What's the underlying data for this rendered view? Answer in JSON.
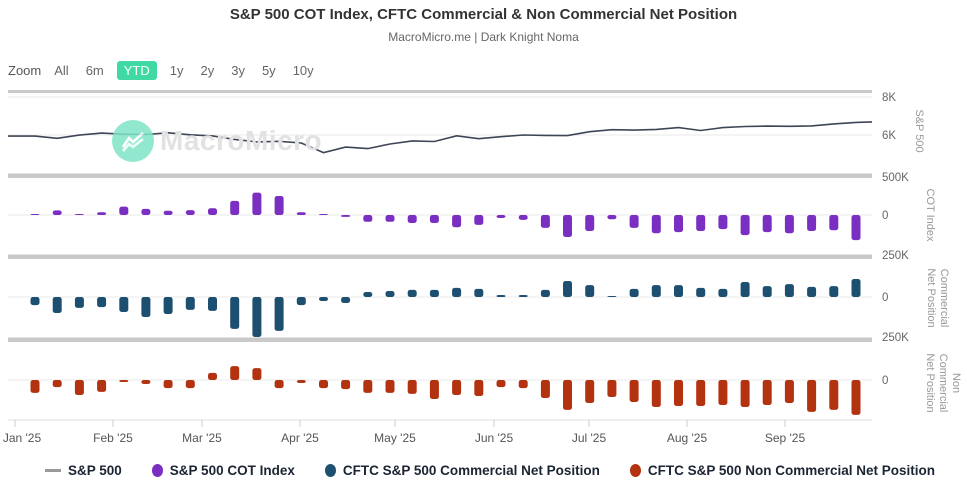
{
  "header": {
    "title": "S&P 500 COT Index, CFTC Commercial & Non Commercial Net Position",
    "subtitle": "MacroMicro.me | Dark Knight Noma"
  },
  "watermark": {
    "text": "MacroMicro"
  },
  "zoom": {
    "label": "Zoom",
    "active_color": "#40d9a4",
    "options": [
      {
        "label": "All",
        "active": false
      },
      {
        "label": "6m",
        "active": false
      },
      {
        "label": "YTD",
        "active": true
      },
      {
        "label": "1y",
        "active": false
      },
      {
        "label": "2y",
        "active": false
      },
      {
        "label": "3y",
        "active": false
      },
      {
        "label": "5y",
        "active": false
      },
      {
        "label": "10y",
        "active": false
      }
    ]
  },
  "axes": {
    "months": [
      "Jan '25",
      "Feb '25",
      "Mar '25",
      "Apr '25",
      "May '25",
      "Jun '25",
      "Jul '25",
      "Aug '25",
      "Sep '25"
    ],
    "right_tick_labels": [
      "8K",
      "6K",
      "500K",
      "0",
      "250K",
      "0",
      "250K",
      "0"
    ],
    "panel_titles": [
      [
        "S&P 500"
      ],
      [
        "COT Index"
      ],
      [
        "Commercial",
        "Net Position"
      ],
      [
        "Non",
        "Commercial",
        "Net Position"
      ]
    ]
  },
  "legend": {
    "items": [
      {
        "label": "S&P 500",
        "marker": "line",
        "color": "#999999"
      },
      {
        "label": "S&P 500 COT Index",
        "marker": "circle",
        "color": "#7a2fc2"
      },
      {
        "label": "CFTC S&P 500 Commercial Net Position",
        "marker": "circle",
        "color": "#1d4f70"
      },
      {
        "label": "CFTC S&P 500 Non Commercial Net Position",
        "marker": "circle",
        "color": "#b33210"
      }
    ]
  },
  "chart_data": [
    {
      "type": "line",
      "name": "S&P 500",
      "panel": "S&P 500",
      "color": "#3e4656",
      "yticks": [
        "8K",
        "6K"
      ],
      "ylim": [
        4000,
        8400
      ],
      "x_frequency": "weekly, Jan 2025 - mid Sep 2025",
      "values": [
        5942,
        5827,
        5997,
        6101,
        6041,
        6026,
        6115,
        6013,
        5955,
        5770,
        5639,
        5668,
        5581,
        5074,
        5363,
        5283,
        5525,
        5687,
        5660,
        5958,
        5803,
        5912,
        6000,
        5977,
        5968,
        6173,
        6279,
        6260,
        6297,
        6389,
        6238,
        6389,
        6450,
        6467,
        6460,
        6481,
        6584,
        6664
      ]
    },
    {
      "type": "bar",
      "name": "S&P 500 COT Index",
      "panel": "COT Index",
      "color": "#7a2fc2",
      "unit": "thousand contracts",
      "yticks": [
        "500K",
        "0"
      ],
      "ylim": [
        -510,
        500
      ],
      "values": [
        5,
        60,
        8,
        35,
        110,
        80,
        55,
        65,
        90,
        185,
        295,
        250,
        35,
        5,
        -25,
        -90,
        -90,
        -105,
        -105,
        -160,
        -130,
        -40,
        -65,
        -170,
        -290,
        -210,
        -55,
        -170,
        -240,
        -225,
        -210,
        -185,
        -265,
        -225,
        -240,
        -210,
        -200,
        -330
      ]
    },
    {
      "type": "bar",
      "name": "CFTC S&P 500 Commercial Net Position",
      "panel": "Commercial Net Position",
      "color": "#1d4f70",
      "unit": "thousand contracts",
      "yticks": [
        "250K",
        "0"
      ],
      "ylim": [
        -250,
        230
      ],
      "values": [
        -48,
        -95,
        -65,
        -60,
        -89,
        -119,
        -101,
        -77,
        -83,
        -190,
        -238,
        -202,
        -48,
        -24,
        -36,
        30,
        36,
        42,
        42,
        54,
        48,
        12,
        12,
        42,
        95,
        71,
        6,
        48,
        71,
        71,
        54,
        48,
        89,
        65,
        77,
        60,
        65,
        107
      ]
    },
    {
      "type": "bar",
      "name": "CFTC S&P 500 Non Commercial Net Position",
      "panel": "Non Commercial Net Position",
      "color": "#b33210",
      "unit": "thousand contracts",
      "yticks": [
        "250K",
        "0"
      ],
      "ylim": [
        -240,
        230
      ],
      "values": [
        -77,
        -42,
        -89,
        -71,
        -12,
        -24,
        -48,
        -48,
        42,
        83,
        71,
        -48,
        -18,
        -48,
        -54,
        -77,
        -77,
        -83,
        -113,
        -89,
        -95,
        -42,
        -48,
        -107,
        -178,
        -137,
        -101,
        -131,
        -161,
        -155,
        -155,
        -149,
        -161,
        -149,
        -137,
        -190,
        -178,
        -208
      ]
    }
  ]
}
